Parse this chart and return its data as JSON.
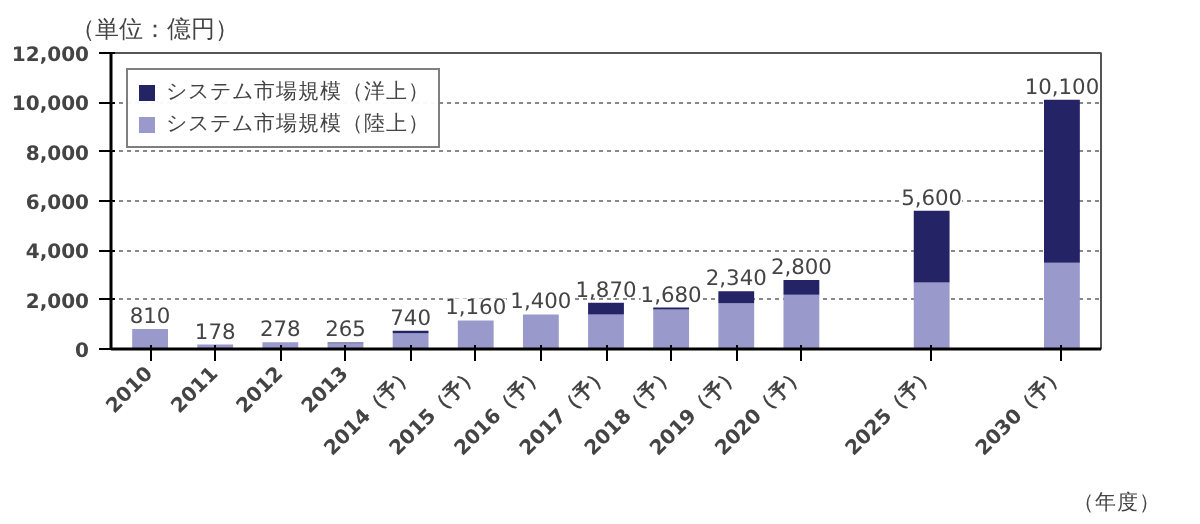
{
  "chart_data": {
    "type": "bar",
    "stacked": true,
    "ylabel": "（単位：億円）",
    "xlabel": "（年度）",
    "categories": [
      "2010",
      "2011",
      "2012",
      "2013",
      "2014（予）",
      "2015（予）",
      "2016（予）",
      "2017（予）",
      "2018（予）",
      "2019（予）",
      "2020（予）",
      null,
      "2025（予）",
      null,
      "2030（予）"
    ],
    "series": [
      {
        "name": "システム市場規模（陸上）",
        "color": "#9999cc",
        "values": [
          810,
          178,
          278,
          230,
          640,
          1160,
          1400,
          1400,
          1600,
          1850,
          2200,
          null,
          2700,
          null,
          3500
        ]
      },
      {
        "name": "システム市場規模（洋上）",
        "color": "#232366",
        "values": [
          0,
          0,
          0,
          35,
          100,
          0,
          0,
          470,
          80,
          490,
          600,
          null,
          2900,
          null,
          6600
        ]
      }
    ],
    "totals": [
      "810",
      "178",
      "278",
      "265",
      "740",
      "1,160",
      "1,400",
      "1,870",
      "1,680",
      "2,340",
      "2,800",
      null,
      "5,600",
      null,
      "10,100"
    ],
    "ylim": [
      0,
      12000
    ],
    "yticks": [
      {
        "value": 0,
        "label": "0"
      },
      {
        "value": 2000,
        "label": "2,000"
      },
      {
        "value": 4000,
        "label": "4,000"
      },
      {
        "value": 6000,
        "label": "6,000"
      },
      {
        "value": 8000,
        "label": "8,000"
      },
      {
        "value": 10000,
        "label": "10,000"
      },
      {
        "value": 12000,
        "label": "12,000"
      }
    ],
    "grid": "y",
    "legend": "top left"
  }
}
